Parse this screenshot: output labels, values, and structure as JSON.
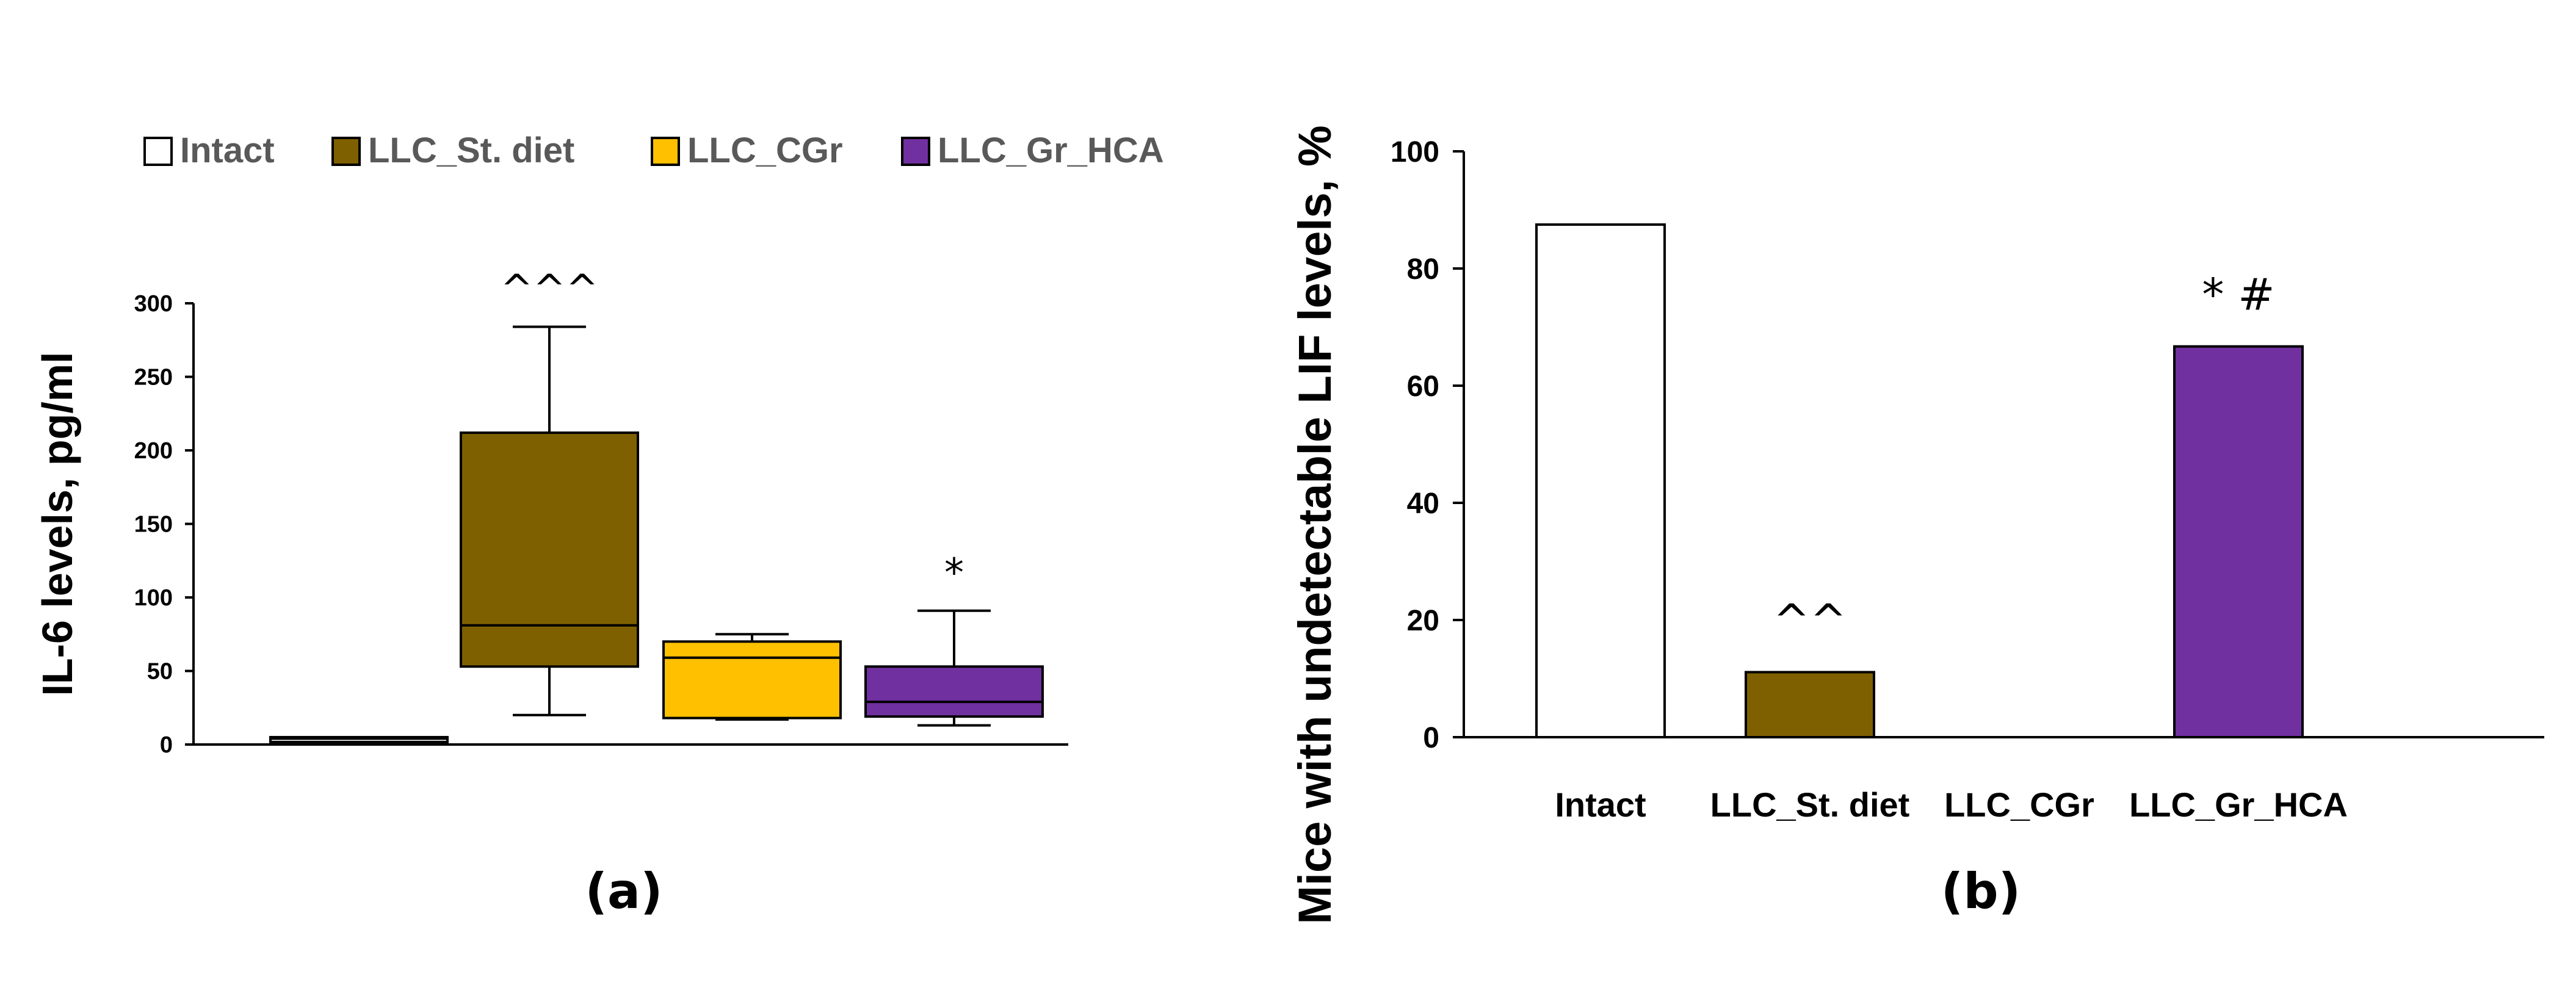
{
  "colors": {
    "Intact": "#ffffff",
    "LLC_St. diet": "#7f6000",
    "LLC_CGr": "#ffc000",
    "LLC_Gr_HCA": "#7030a0"
  },
  "chart_data": [
    {
      "type": "box",
      "panel_label": "(a)",
      "ylabel": "IL-6 levels, pg/ml",
      "ylim": [
        0,
        300
      ],
      "yticks": [
        0,
        50,
        100,
        150,
        200,
        250,
        300
      ],
      "legend": {
        "placement": "top",
        "entries": [
          "Intact",
          "LLC_St. diet",
          "LLC_CGr",
          "LLC_Gr_HCA"
        ]
      },
      "categories": [
        "Intact",
        "LLC_St. diet",
        "LLC_CGr",
        "LLC_Gr_HCA"
      ],
      "boxes": [
        {
          "name": "Intact",
          "min": 3,
          "q1": 3,
          "median": 4,
          "q3": 5,
          "max": 5,
          "annotation": ""
        },
        {
          "name": "LLC_St. diet",
          "min": 20,
          "q1": 53,
          "median": 81,
          "q3": 212,
          "max": 284,
          "annotation": "^^^"
        },
        {
          "name": "LLC_CGr",
          "min": 17,
          "q1": 18,
          "median": 59,
          "q3": 70,
          "max": 75,
          "annotation": ""
        },
        {
          "name": "LLC_Gr_HCA",
          "min": 13,
          "q1": 19,
          "median": 29,
          "q3": 53,
          "max": 91,
          "annotation": "*"
        }
      ]
    },
    {
      "type": "bar",
      "panel_label": "(b)",
      "ylabel": "Mice with undetectable LIF levels, %",
      "ylim": [
        0,
        100
      ],
      "yticks": [
        0,
        20,
        40,
        60,
        80,
        100
      ],
      "categories": [
        "Intact",
        "LLC_St. diet",
        "LLC_CGr",
        "LLC_Gr_HCA"
      ],
      "values": [
        87.5,
        11.1,
        0,
        66.7
      ],
      "annotations": [
        "",
        "^^",
        "",
        "* #"
      ]
    }
  ]
}
